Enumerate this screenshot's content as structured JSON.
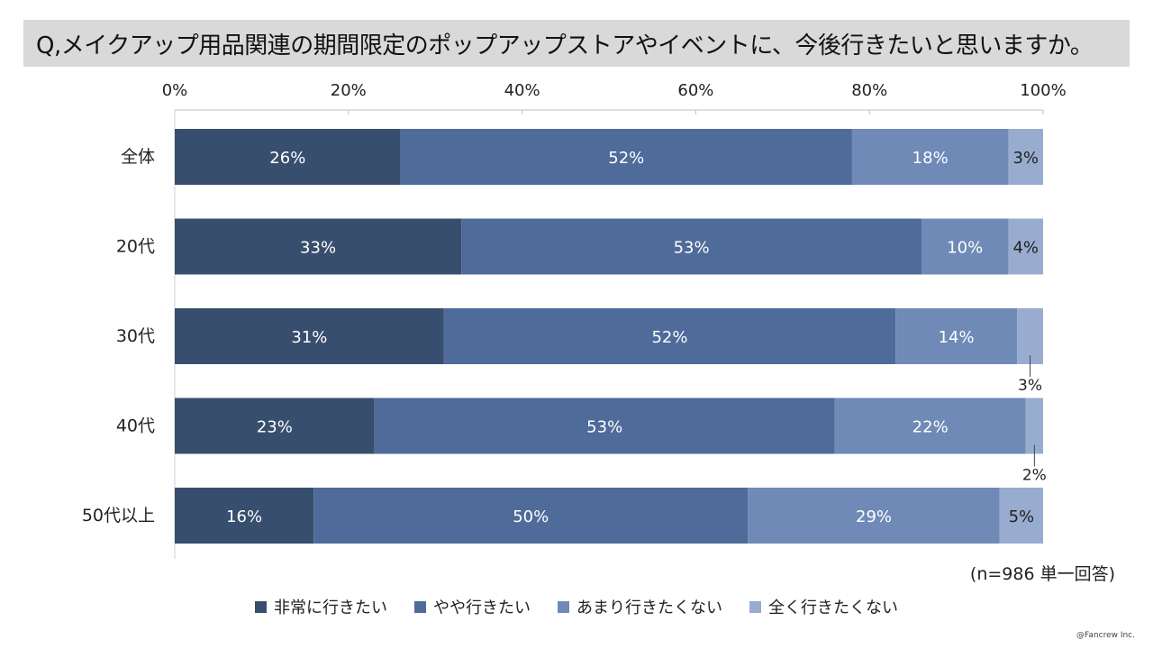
{
  "title": "Q,メイクアップ用品関連の期間限定のポップアップストアやイベントに、今後行きたいと思いますか。",
  "note": "(n=986 単一回答)",
  "credit": "@Fancrew Inc.",
  "colors": [
    "#384e6e",
    "#4e6b99",
    "#6f8ab7",
    "#98acd0"
  ],
  "chart_data": {
    "type": "bar",
    "orientation": "horizontal",
    "stacked": true,
    "title": "Q,メイクアップ用品関連の期間限定のポップアップストアやイベントに、今後行きたいと思いますか。",
    "xlim": [
      0,
      100
    ],
    "x_ticks": [
      "0%",
      "20%",
      "40%",
      "60%",
      "80%",
      "100%"
    ],
    "categories": [
      "全体",
      "20代",
      "30代",
      "40代",
      "50代以上"
    ],
    "series": [
      {
        "name": "非常に行きたい",
        "values": [
          26,
          33,
          31,
          23,
          16
        ],
        "labels": [
          "26%",
          "33%",
          "31%",
          "23%",
          "16%"
        ]
      },
      {
        "name": "やや行きたい",
        "values": [
          52,
          53,
          52,
          53,
          50
        ],
        "labels": [
          "52%",
          "53%",
          "52%",
          "53%",
          "50%"
        ]
      },
      {
        "name": "あまり行きたくない",
        "values": [
          18,
          10,
          14,
          22,
          29
        ],
        "labels": [
          "18%",
          "10%",
          "14%",
          "22%",
          "29%"
        ]
      },
      {
        "name": "全く行きたくない",
        "values": [
          3,
          4,
          3,
          2,
          5
        ],
        "labels": [
          "3%",
          "4%",
          "3%",
          "2%",
          "5%"
        ]
      }
    ],
    "legend_position": "bottom"
  }
}
